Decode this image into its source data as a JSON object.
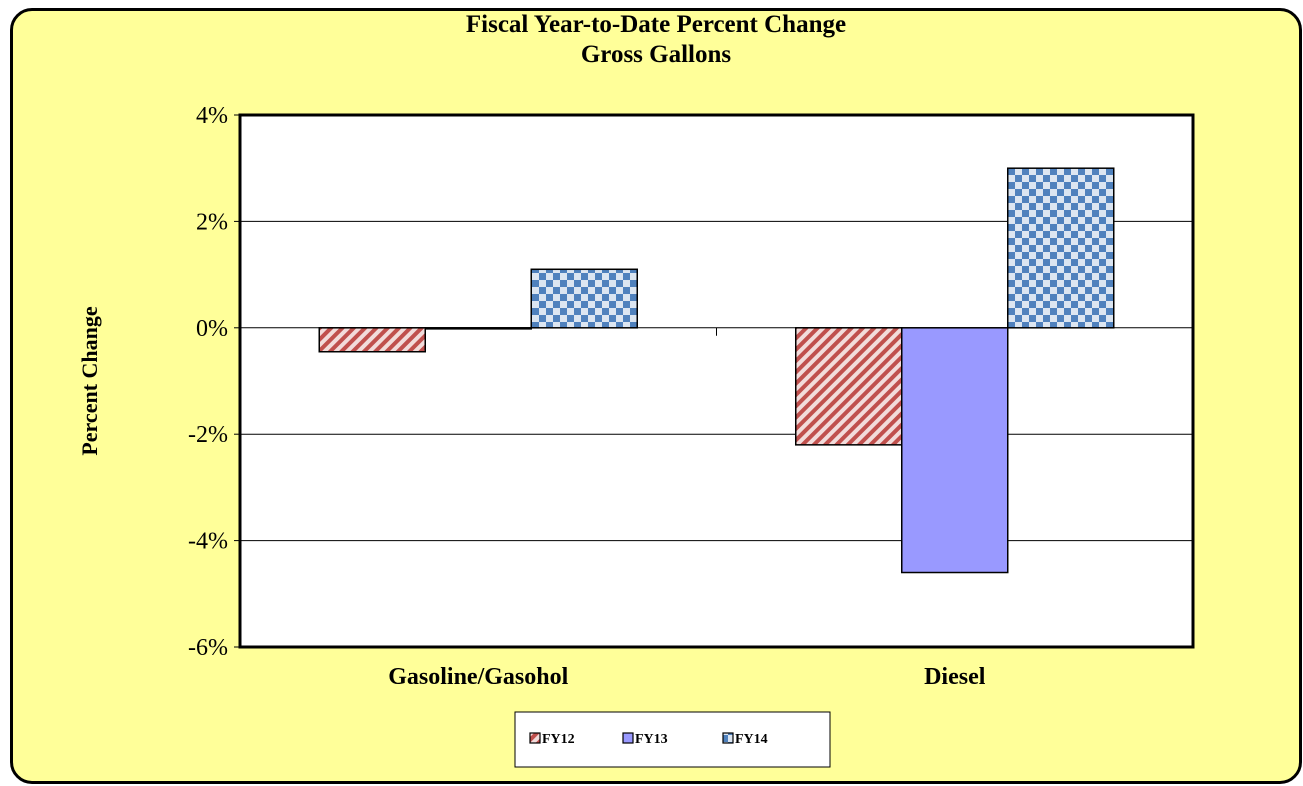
{
  "chart_data": {
    "type": "bar",
    "title": "Fiscal Year-to-Date Percent Change",
    "subtitle": "Gross Gallons",
    "ylabel": "Percent Change",
    "xlabel": "",
    "categories": [
      "Gasoline/Gasohol",
      "Diesel"
    ],
    "series": [
      {
        "name": "FY12",
        "values": [
          -0.45,
          -2.2
        ],
        "color": "#c0504d",
        "pattern": "diagonal-stripes"
      },
      {
        "name": "FY13",
        "values": [
          -0.02,
          -4.6
        ],
        "color": "#9999ff",
        "pattern": "solid"
      },
      {
        "name": "FY14",
        "values": [
          1.1,
          3.0
        ],
        "color": "#4f81bd",
        "pattern": "checkerboard"
      }
    ],
    "ylim": [
      -6,
      4
    ],
    "yticks": [
      4,
      2,
      0,
      -2,
      -4,
      -6
    ],
    "ytick_labels": [
      "4%",
      "2%",
      "0%",
      "-2%",
      "-4%",
      "-6%"
    ],
    "grid": true,
    "legend_position": "bottom-center",
    "background_color": "#ffff99",
    "plot_background_color": "#ffffff"
  }
}
